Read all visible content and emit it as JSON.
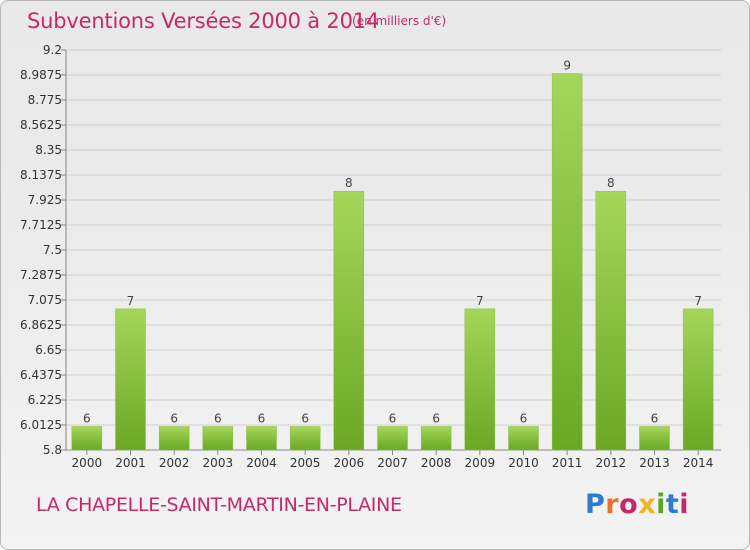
{
  "header": {
    "title": "Subventions Versées 2000 à 2014",
    "unit": "(en milliers d'€)"
  },
  "footer": {
    "commune": "LA CHAPELLE-SAINT-MARTIN-EN-PLAINE",
    "logo": "Proxiti",
    "logo_colors": [
      "#2e7ccf",
      "#e8722a",
      "#c8286a",
      "#f0b520",
      "#5aa428",
      "#2e7ccf",
      "#c8286a"
    ]
  },
  "colors": {
    "bar_light": "#a4d65a",
    "bar_dark": "#6aa824",
    "grid": "#cfcfcf",
    "title": "#c8286a"
  },
  "chart_data": {
    "type": "bar",
    "title": "Subventions Versées 2000 à 2014",
    "xlabel": "",
    "ylabel": "",
    "categories": [
      "2000",
      "2001",
      "2002",
      "2003",
      "2004",
      "2005",
      "2006",
      "2007",
      "2008",
      "2009",
      "2010",
      "2011",
      "2012",
      "2013",
      "2014"
    ],
    "values": [
      6,
      7,
      6,
      6,
      6,
      6,
      8,
      6,
      6,
      7,
      6,
      9,
      8,
      6,
      7
    ],
    "value_labels": [
      "6",
      "7",
      "6",
      "6",
      "6",
      "6",
      "8",
      "6",
      "6",
      "7",
      "6",
      "9",
      "8",
      "6",
      "7"
    ],
    "y_ticks": [
      "5.8",
      "6.0125",
      "6.225",
      "6.4375",
      "6.65",
      "6.8625",
      "7.075",
      "7.2875",
      "7.5",
      "7.7125",
      "7.925",
      "8.1375",
      "8.35",
      "8.5625",
      "8.775",
      "8.9875",
      "9.2"
    ],
    "ylim": [
      5.8,
      9.2
    ],
    "grid": true,
    "legend": "none"
  }
}
